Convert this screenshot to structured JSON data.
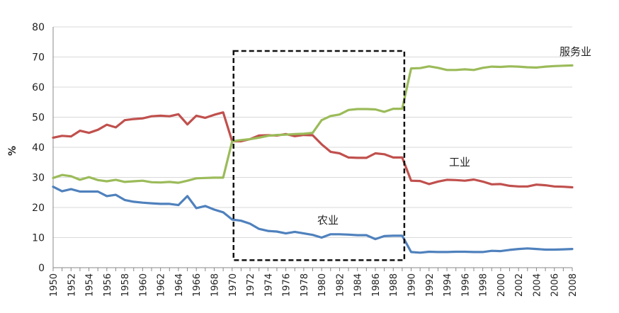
{
  "chart_data": {
    "type": "line",
    "ylabel": "%",
    "ylim": [
      0,
      80
    ],
    "yticks": [
      0,
      10,
      20,
      30,
      40,
      50,
      60,
      70,
      80
    ],
    "x": [
      1950,
      1951,
      1952,
      1953,
      1954,
      1955,
      1956,
      1957,
      1958,
      1959,
      1960,
      1961,
      1962,
      1963,
      1964,
      1965,
      1966,
      1967,
      1968,
      1969,
      1970,
      1971,
      1972,
      1973,
      1974,
      1975,
      1976,
      1977,
      1978,
      1979,
      1980,
      1981,
      1982,
      1983,
      1984,
      1985,
      1986,
      1987,
      1988,
      1989,
      1990,
      1991,
      1992,
      1993,
      1994,
      1995,
      1996,
      1997,
      1998,
      1999,
      2000,
      2001,
      2002,
      2003,
      2004,
      2005,
      2006,
      2007,
      2008
    ],
    "xticks": [
      1950,
      1952,
      1954,
      1956,
      1958,
      1960,
      1962,
      1964,
      1966,
      1968,
      1970,
      1972,
      1974,
      1976,
      1978,
      1980,
      1982,
      1984,
      1986,
      1988,
      1990,
      1992,
      1994,
      1996,
      1998,
      2000,
      2002,
      2004,
      2006,
      2008
    ],
    "grid": true,
    "series": [
      {
        "name": "工业",
        "color": "#c0504d",
        "values": [
          43.2,
          43.8,
          43.6,
          45.5,
          44.8,
          45.8,
          47.5,
          46.6,
          49.0,
          49.4,
          49.6,
          50.3,
          50.5,
          50.3,
          51.0,
          47.6,
          50.5,
          49.8,
          50.8,
          51.6,
          42.0,
          42.0,
          42.7,
          43.9,
          44.0,
          43.9,
          44.4,
          43.7,
          44.1,
          44.0,
          41.0,
          38.5,
          38.0,
          36.6,
          36.5,
          36.5,
          38.0,
          37.7,
          36.6,
          36.6,
          28.9,
          28.8,
          27.8,
          28.6,
          29.2,
          29.1,
          28.9,
          29.3,
          28.6,
          27.7,
          27.8,
          27.2,
          27.0,
          27.0,
          27.6,
          27.4,
          27.0,
          26.9,
          26.7
        ]
      },
      {
        "name": "服务业",
        "color": "#9bbb59",
        "values": [
          29.8,
          30.8,
          30.4,
          29.2,
          30.1,
          29.1,
          28.7,
          29.2,
          28.5,
          28.7,
          28.9,
          28.4,
          28.3,
          28.5,
          28.2,
          28.9,
          29.7,
          29.8,
          29.9,
          29.9,
          42.0,
          42.4,
          42.7,
          43.2,
          43.8,
          44.1,
          44.2,
          44.4,
          44.5,
          44.8,
          49.0,
          50.4,
          50.9,
          52.4,
          52.7,
          52.7,
          52.6,
          51.8,
          52.8,
          52.8,
          66.2,
          66.3,
          66.9,
          66.4,
          65.7,
          65.7,
          65.9,
          65.7,
          66.4,
          66.8,
          66.7,
          66.9,
          66.8,
          66.6,
          66.5,
          66.8,
          67.0,
          67.1,
          67.2
        ]
      },
      {
        "name": "农业",
        "color": "#4f81bd",
        "values": [
          26.9,
          25.4,
          26.1,
          25.3,
          25.3,
          25.3,
          23.8,
          24.2,
          22.5,
          21.9,
          21.6,
          21.4,
          21.2,
          21.2,
          20.8,
          23.8,
          19.8,
          20.5,
          19.3,
          18.4,
          16.0,
          15.6,
          14.6,
          12.9,
          12.2,
          12.0,
          11.4,
          11.9,
          11.4,
          10.9,
          10.0,
          11.1,
          11.1,
          11.0,
          10.8,
          10.8,
          9.5,
          10.5,
          10.6,
          10.6,
          5.2,
          5.0,
          5.3,
          5.2,
          5.2,
          5.3,
          5.3,
          5.2,
          5.2,
          5.6,
          5.5,
          5.9,
          6.2,
          6.4,
          6.2,
          6.0,
          6.0,
          6.1,
          6.2
        ]
      }
    ],
    "annotations": {
      "box": {
        "from": 1970,
        "to": 1989,
        "ymin": 2.5,
        "ymax": 72
      },
      "labels": [
        {
          "series": "服务业",
          "text": "服务业"
        },
        {
          "series": "工业",
          "text": "工业"
        },
        {
          "series": "农业",
          "text": "农业"
        }
      ]
    }
  }
}
